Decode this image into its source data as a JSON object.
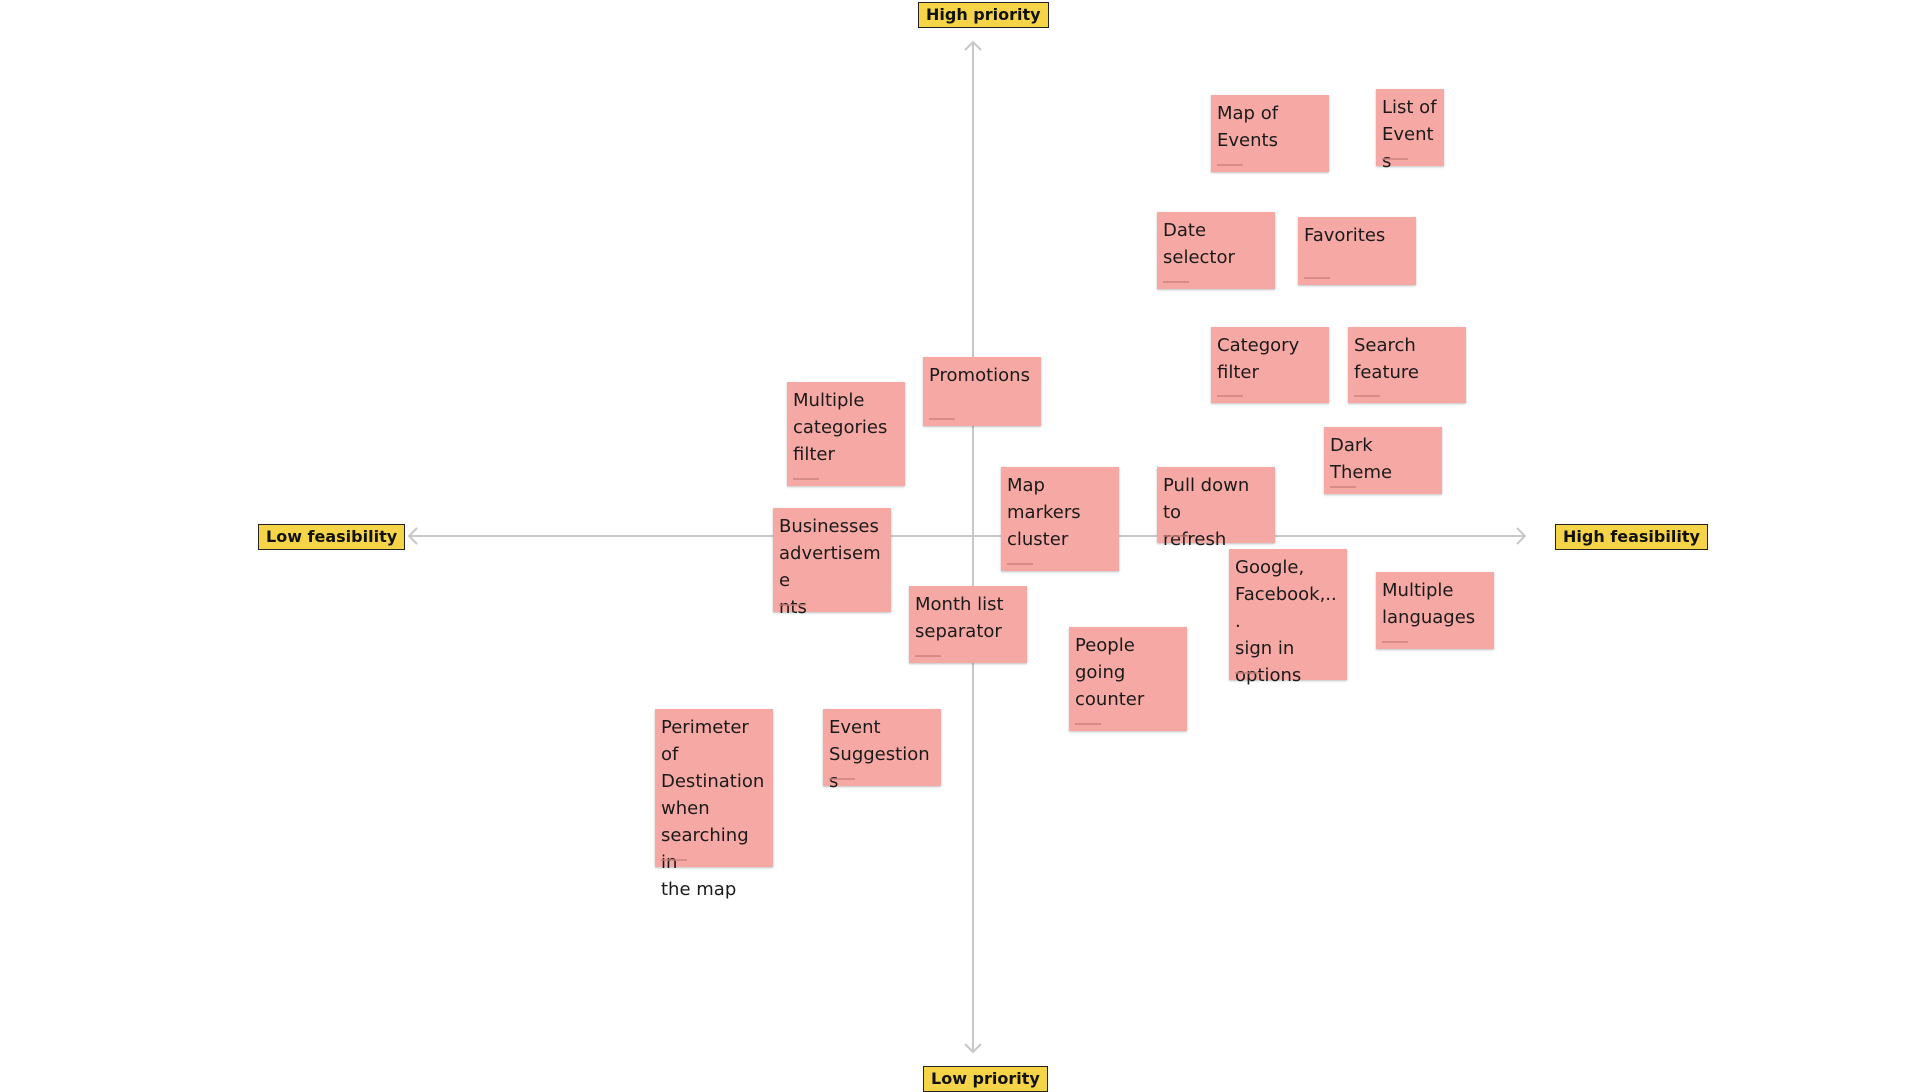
{
  "axes": {
    "top": "High priority",
    "bottom": "Low priority",
    "left": "Low feasibility",
    "right": "High feasibility"
  },
  "colors": {
    "sticky": "#f6a9a4",
    "label": "#f5d547",
    "axis": "#c8c8c8"
  },
  "notes": [
    {
      "id": "map-of-events",
      "text": "Map of\nEvents"
    },
    {
      "id": "list-of-events",
      "text": "List of\nEvents"
    },
    {
      "id": "date-selector",
      "text": "Date\nselector"
    },
    {
      "id": "favorites",
      "text": "Favorites"
    },
    {
      "id": "category-filter",
      "text": "Category\nfilter"
    },
    {
      "id": "search-feature",
      "text": "Search\nfeature"
    },
    {
      "id": "promotions",
      "text": "Promotions"
    },
    {
      "id": "multiple-categories-filter",
      "text": "Multiple\ncategories\nfilter"
    },
    {
      "id": "dark-theme",
      "text": "Dark Theme"
    },
    {
      "id": "map-markers-cluster",
      "text": "Map\nmarkers\ncluster"
    },
    {
      "id": "pull-down-to-refresh",
      "text": "Pull down to\nrefresh"
    },
    {
      "id": "businesses-advertisements",
      "text": "Businesses\nadvertiseme\nnts"
    },
    {
      "id": "google-facebook-sign-in",
      "text": "Google,\nFacebook,...\nsign in\noptions"
    },
    {
      "id": "multiple-languages",
      "text": "Multiple\nlanguages"
    },
    {
      "id": "month-list-separator",
      "text": "Month list\nseparator"
    },
    {
      "id": "people-going-counter",
      "text": "People\ngoing\ncounter"
    },
    {
      "id": "perimeter-of-destination",
      "text": "Perimeter of\nDestination\nwhen\nsearching in\nthe map"
    },
    {
      "id": "event-suggestions",
      "text": "Event\nSuggestions"
    }
  ]
}
